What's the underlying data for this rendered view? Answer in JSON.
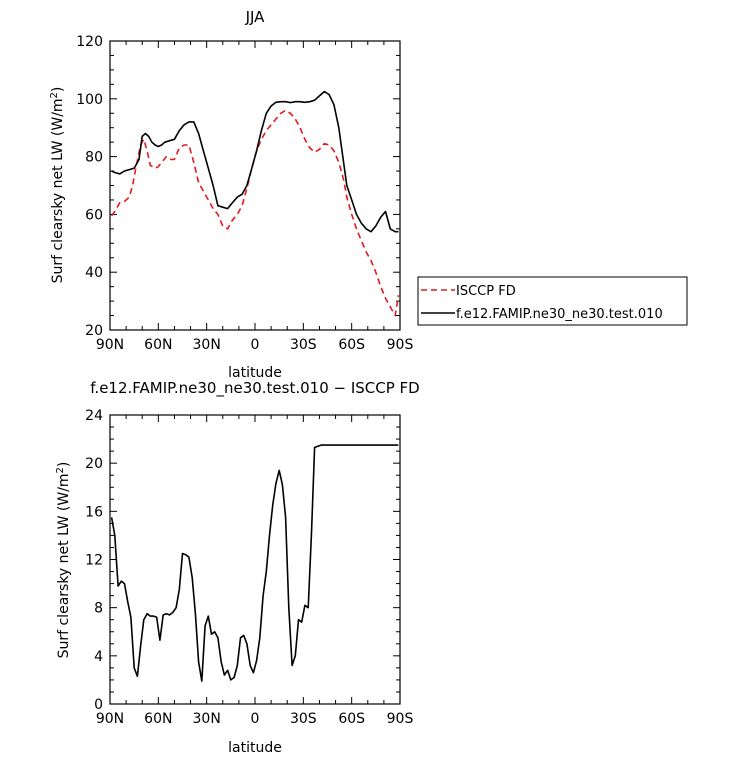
{
  "chart_data": [
    {
      "type": "line",
      "title": "JJA",
      "xlabel": "latitude",
      "ylabel": "Surf clearsky net LW (W/m²)",
      "ylabel_parts": {
        "main": "Surf clearsky net LW (W/m",
        "sup": "2",
        "close": ")"
      },
      "xlim": [
        90,
        -90
      ],
      "ylim": [
        20,
        120
      ],
      "x_ticks": [
        90,
        60,
        30,
        0,
        -30,
        -60,
        -90
      ],
      "x_tick_labels": [
        "90N",
        "60N",
        "30N",
        "0",
        "30S",
        "60S",
        "90S"
      ],
      "y_ticks": [
        20,
        40,
        60,
        80,
        100,
        120
      ],
      "y_tick_labels": [
        "20",
        "40",
        "60",
        "80",
        "100",
        "120"
      ],
      "legend_position": "outside-right",
      "series": [
        {
          "name": "ISCCP FD",
          "color": "#e41a1c",
          "dash": "dashed",
          "x": [
            89,
            87,
            84,
            81,
            78,
            76,
            74,
            71,
            69,
            67,
            65,
            62,
            60,
            58,
            55,
            52,
            50,
            47,
            44,
            41,
            38,
            35,
            32,
            29,
            26,
            23,
            20,
            17,
            14,
            11,
            8,
            5,
            2,
            -1,
            -4,
            -7,
            -10,
            -13,
            -16,
            -19,
            -22,
            -25,
            -28,
            -31,
            -34,
            -37,
            -40,
            -43,
            -46,
            -49,
            -52,
            -55,
            -57,
            -60,
            -63,
            -66,
            -69,
            -72,
            -75,
            -78,
            -81,
            -84,
            -87,
            -89
          ],
          "y": [
            59.5,
            61,
            64,
            64.5,
            66,
            70,
            76,
            84,
            86,
            82,
            77,
            76,
            76.5,
            78,
            80,
            79,
            79,
            83,
            84,
            84,
            78,
            71,
            68,
            65,
            62,
            60,
            56,
            55,
            58,
            60,
            63,
            69,
            76,
            82,
            86,
            89,
            91,
            93,
            95,
            96,
            95,
            93,
            90,
            86,
            83,
            81.5,
            82.5,
            84.5,
            84,
            82,
            78,
            72,
            66,
            60,
            55,
            51,
            47,
            44,
            40,
            35,
            31,
            28,
            25,
            32
          ]
        },
        {
          "name": "f.e12.FAMIP.ne30_ne30.test.010",
          "color": "#000000",
          "dash": "solid",
          "x": [
            89,
            87,
            84,
            81,
            78,
            75,
            72,
            70,
            68,
            66,
            64,
            62,
            60,
            58,
            56,
            53,
            50,
            47,
            44,
            41,
            38,
            35,
            32,
            29,
            26,
            23,
            20,
            17,
            14,
            11,
            8,
            5,
            2,
            -1,
            -4,
            -7,
            -10,
            -13,
            -16,
            -19,
            -22,
            -25,
            -28,
            -31,
            -34,
            -37,
            -40,
            -43,
            -46,
            -49,
            -52,
            -55,
            -57,
            -60,
            -63,
            -66,
            -69,
            -72,
            -75,
            -78,
            -81,
            -84,
            -87,
            -89
          ],
          "y": [
            75,
            74.5,
            74,
            75,
            75.5,
            76,
            79,
            87,
            88,
            87,
            85,
            84,
            83.5,
            84,
            85,
            85.5,
            86,
            89,
            91,
            92,
            92,
            88,
            82,
            76,
            70,
            63,
            62.5,
            62,
            64,
            66,
            67,
            70,
            76,
            82,
            89,
            95,
            97.5,
            98.8,
            99,
            99,
            98.7,
            99,
            99,
            98.8,
            99,
            99.5,
            101,
            102.5,
            101.5,
            98,
            90,
            78,
            70,
            65,
            60,
            57,
            55,
            54,
            56,
            59,
            61,
            55,
            54,
            54
          ]
        }
      ]
    },
    {
      "type": "line",
      "title": "f.e12.FAMIP.ne30_ne30.test.010 − ISCCP FD",
      "xlabel": "latitude",
      "ylabel": "Surf clearsky net LW (W/m²)",
      "ylabel_parts": {
        "main": "Surf clearsky net LW (W/m",
        "sup": "2",
        "close": ")"
      },
      "xlim": [
        90,
        -90
      ],
      "ylim": [
        0,
        24
      ],
      "x_ticks": [
        90,
        60,
        30,
        0,
        -30,
        -60,
        -90
      ],
      "x_tick_labels": [
        "90N",
        "60N",
        "30N",
        "0",
        "30S",
        "60S",
        "90S"
      ],
      "y_ticks": [
        0,
        4,
        8,
        12,
        16,
        20,
        24
      ],
      "y_tick_labels": [
        "0",
        "4",
        "8",
        "12",
        "16",
        "20",
        "24"
      ],
      "series": [
        {
          "color": "#000000",
          "dash": "solid",
          "x": [
            89,
            87,
            85,
            83,
            81,
            79,
            77,
            75,
            73,
            71,
            69,
            67,
            65,
            63,
            61,
            59,
            57,
            55,
            53,
            51,
            49,
            47,
            45,
            43,
            41,
            39,
            37,
            35,
            33,
            31,
            29,
            27,
            25,
            23,
            21,
            19,
            17,
            15,
            13,
            11,
            9,
            7,
            5,
            3,
            1,
            -1,
            -3,
            -5,
            -7,
            -9,
            -11,
            -13,
            -15,
            -17,
            -19,
            -21,
            -23,
            -25,
            -27,
            -29,
            -31,
            -33,
            -35,
            -37,
            -39,
            -41,
            -43,
            -45,
            -47,
            -49,
            -51,
            -53,
            -55,
            -57,
            -59,
            -61,
            -63,
            -65,
            -67,
            -69,
            -71,
            -73,
            -75,
            -77,
            -79,
            -81,
            -83,
            -85,
            -87,
            -89
          ],
          "y": [
            15.5,
            14,
            9.8,
            10.2,
            10,
            8.5,
            7.2,
            3,
            2.3,
            4.8,
            7,
            7.5,
            7.3,
            7.3,
            7.2,
            5.3,
            7.4,
            7.5,
            7.4,
            7.6,
            8,
            9.5,
            12.5,
            12.4,
            12.2,
            10.5,
            7.5,
            3.5,
            1.9,
            6.5,
            7.3,
            5.8,
            6,
            5.5,
            3.5,
            2.4,
            2.8,
            2,
            2.2,
            3.2,
            5.5,
            5.7,
            5,
            3.2,
            2.6,
            3.6,
            5.5,
            9,
            11,
            14,
            16.5,
            18.3,
            19.4,
            18.2,
            15.5,
            8,
            3.2,
            4,
            7,
            6.8,
            8.2,
            8,
            14,
            21.3,
            21.4,
            21.5,
            21.5,
            21.5,
            21.5,
            21.5,
            21.5,
            21.5,
            21.5,
            21.5,
            21.5,
            21.5,
            21.5,
            21.5,
            21.5,
            21.5,
            21.5,
            21.5,
            21.5,
            21.5,
            21.5,
            21.5,
            21.5,
            21.5,
            21.5,
            21.5
          ]
        }
      ]
    }
  ]
}
